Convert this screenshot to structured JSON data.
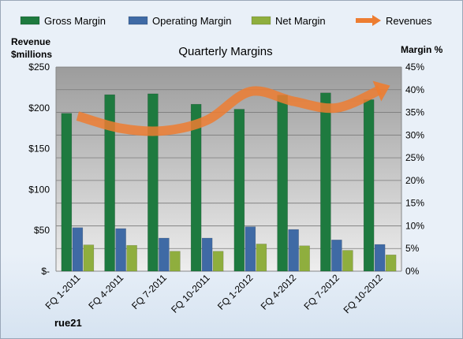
{
  "chart_data": {
    "type": "bar",
    "title": "Quarterly Margins",
    "footer_label": "rue21",
    "left_axis": {
      "label_line1": "Revenue",
      "label_line2": "$millions",
      "ylim": [
        0,
        250
      ],
      "ticks": [
        0,
        50,
        100,
        150,
        200,
        250
      ],
      "tick_labels": [
        "$-",
        "$50",
        "$100",
        "$150",
        "$200",
        "$250"
      ]
    },
    "right_axis": {
      "label": "Margin %",
      "ylim": [
        0,
        45
      ],
      "ticks": [
        0,
        5,
        10,
        15,
        20,
        25,
        30,
        35,
        40,
        45
      ],
      "tick_labels": [
        "0%",
        "5%",
        "10%",
        "15%",
        "20%",
        "25%",
        "30%",
        "35%",
        "40%",
        "45%"
      ]
    },
    "categories": [
      "FQ 1-2011",
      "FQ 4-2011",
      "FQ 7-2011",
      "FQ 10-2011",
      "FQ 1-2012",
      "FQ 4-2012",
      "FQ 7-2012",
      "FQ 10-2012"
    ],
    "series": [
      {
        "name": "Gross Margin",
        "type": "bar",
        "axis": "right",
        "color": "#1e7a3f",
        "values": [
          34.8,
          38.9,
          39.1,
          36.8,
          35.7,
          38.8,
          39.3,
          37.8
        ]
      },
      {
        "name": "Operating Margin",
        "type": "bar",
        "axis": "right",
        "color": "#3f6aa5",
        "values": [
          9.6,
          9.4,
          7.3,
          7.3,
          9.8,
          9.2,
          6.9,
          5.9
        ]
      },
      {
        "name": "Net Margin",
        "type": "bar",
        "axis": "right",
        "color": "#8fae3e",
        "values": [
          5.8,
          5.7,
          4.4,
          4.4,
          6.0,
          5.6,
          4.6,
          3.6
        ]
      },
      {
        "name": "Revenues",
        "type": "line",
        "axis": "left",
        "color": "#ed7d31",
        "values": [
          190,
          175,
          172,
          185,
          220,
          208,
          200,
          222
        ]
      }
    ],
    "grid": true,
    "legend_position": "top"
  }
}
